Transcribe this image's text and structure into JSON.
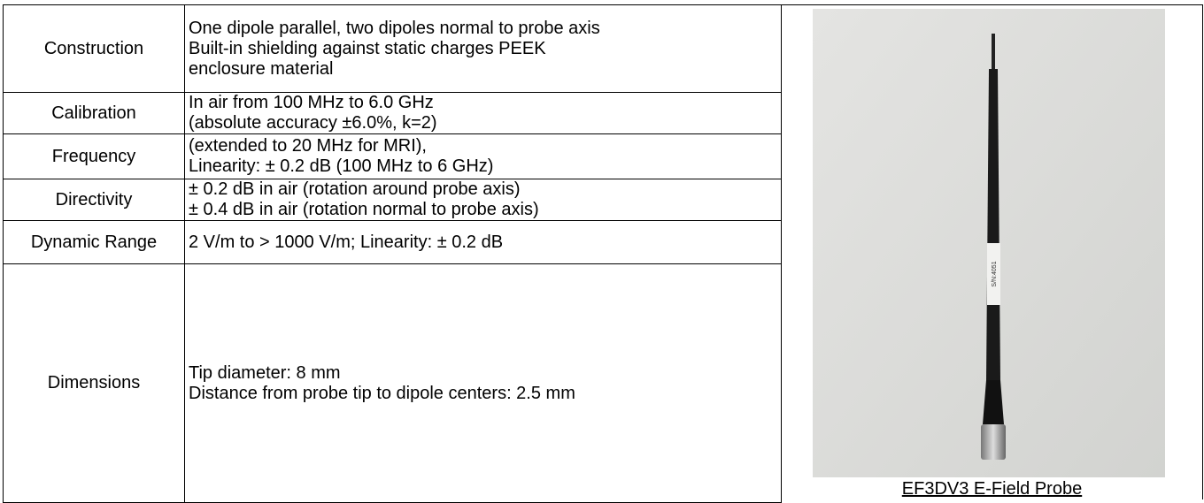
{
  "table": {
    "rows": [
      {
        "label": "Construction",
        "lines": [
          "One dipole parallel, two dipoles normal to probe axis",
          "Built-in shielding against static charges PEEK",
          "enclosure material"
        ]
      },
      {
        "label": "Calibration",
        "lines": [
          "In air from 100 MHz to 6.0 GHz",
          "(absolute accuracy ±6.0%, k=2)"
        ]
      },
      {
        "label": "Frequency",
        "lines": [
          "(extended to 20 MHz for MRI),",
          "Linearity: ± 0.2 dB (100 MHz to 6 GHz)"
        ]
      },
      {
        "label": "Directivity",
        "lines": [
          "± 0.2 dB in air (rotation around probe axis)",
          "± 0.4 dB in air (rotation normal to probe axis)"
        ]
      },
      {
        "label": "Dynamic Range",
        "lines": [
          "2 V/m to > 1000 V/m; Linearity: ± 0.2 dB"
        ]
      },
      {
        "label": "Dimensions",
        "lines": [
          "Tip diameter: 8 mm",
          "Distance from probe tip to dipole centers: 2.5 mm"
        ]
      }
    ]
  },
  "photo": {
    "probe_label": "S/N:4051",
    "caption": "EF3DV3 E-Field Probe"
  }
}
